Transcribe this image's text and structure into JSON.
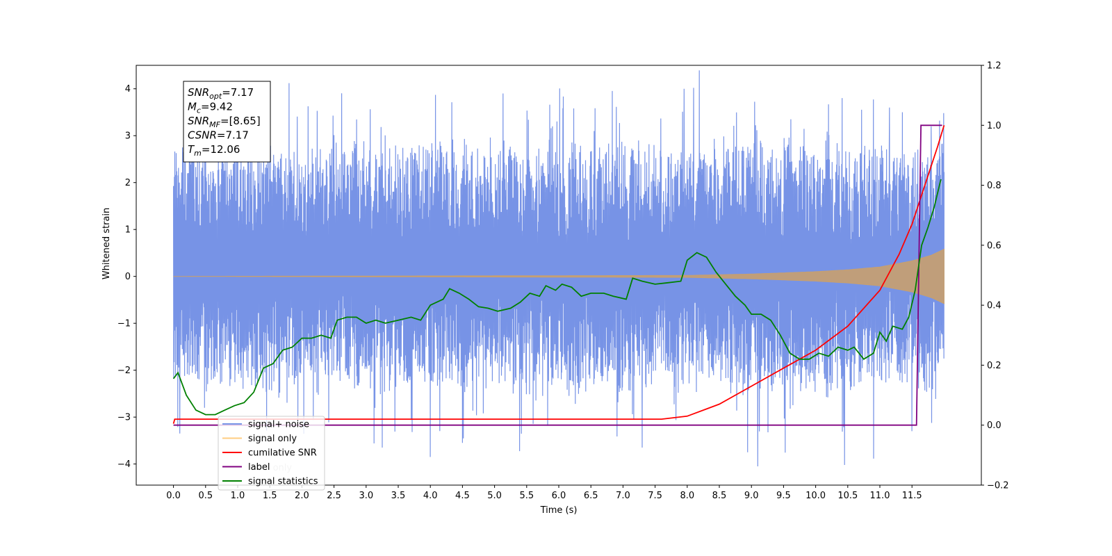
{
  "chart_data": {
    "type": "line",
    "xlabel": "Time (s)",
    "ylabel": "Whitened strain",
    "xlim": [
      -0.58,
      12.58
    ],
    "ylim": [
      -4.45,
      4.5
    ],
    "y2lim": [
      -0.2,
      1.2
    ],
    "grid": false,
    "legend_position": "lower-left",
    "x_ticks": [
      0.0,
      0.5,
      1.0,
      1.5,
      2.0,
      2.5,
      3.0,
      3.5,
      4.0,
      4.5,
      5.0,
      5.5,
      6.0,
      6.5,
      7.0,
      7.5,
      8.0,
      8.5,
      9.0,
      9.5,
      10.0,
      10.5,
      11.0,
      11.5
    ],
    "x_tick_labels": [
      "0.0",
      "0.5",
      "1.0",
      "1.5",
      "2.0",
      "2.5",
      "3.0",
      "3.5",
      "4.0",
      "4.5",
      "5.0",
      "5.5",
      "6.0",
      "6.5",
      "7.0",
      "7.5",
      "8.0",
      "8.5",
      "9.0",
      "9.5",
      "10.0",
      "10.5",
      "11.0",
      "11.5"
    ],
    "y_ticks": [
      4,
      3,
      2,
      1,
      0,
      -1,
      -2,
      -3,
      -4
    ],
    "y_tick_labels": [
      "4",
      "3",
      "2",
      "1",
      "0",
      "−1",
      "−2",
      "−3",
      "−4"
    ],
    "y2_ticks": [
      1.2,
      1.0,
      0.8,
      0.6,
      0.4,
      0.2,
      0.0,
      -0.2
    ],
    "y2_tick_labels": [
      "1.2",
      "1.0",
      "0.8",
      "0.6",
      "0.4",
      "0.2",
      "0.0",
      "−0.2"
    ],
    "annotation": [
      {
        "main": "SNR",
        "sub": "opt",
        "value": "=7.17"
      },
      {
        "main": "M",
        "sub": "c",
        "value": "=9.42"
      },
      {
        "main": "SNR",
        "sub": "MF",
        "value": "=[8.65]"
      },
      {
        "main": "CSNR",
        "sub": "",
        "value": "=7.17"
      },
      {
        "main": "T",
        "sub": "m",
        "value": "=12.06"
      }
    ],
    "legend": [
      {
        "label": "signal+ noise",
        "color": "#7793e6"
      },
      {
        "label": "signal only",
        "color": "#ffcc80"
      },
      {
        "label": "cumilative SNR",
        "color": "#ff0000"
      },
      {
        "label": "label",
        "color": "#800080"
      },
      {
        "label": "signal statistics",
        "color": "#008000"
      }
    ],
    "hidden_legend_text": "label only",
    "series": [
      {
        "name": "signal+ noise",
        "axis": "left",
        "color": "#7793e6",
        "x_range": [
          0.0,
          12.0
        ],
        "band_lower": -1.7,
        "band_upper": 2.1,
        "spikes": [
          {
            "x": 1.8,
            "y": 4.12
          },
          {
            "x": 4.08,
            "y": 3.87
          },
          {
            "x": 5.9,
            "y": 3.2
          },
          {
            "x": 6.55,
            "y": 3.1
          },
          {
            "x": 7.95,
            "y": 4.0
          },
          {
            "x": 8.1,
            "y": 4.02
          },
          {
            "x": 11.15,
            "y": 3.6
          },
          {
            "x": 11.35,
            "y": 3.5
          },
          {
            "x": 11.8,
            "y": 3.2
          },
          {
            "x": 0.1,
            "y": -3.35
          },
          {
            "x": 3.25,
            "y": -3.65
          },
          {
            "x": 4.0,
            "y": -3.85
          },
          {
            "x": 4.5,
            "y": -3.55
          },
          {
            "x": 7.3,
            "y": -3.65
          },
          {
            "x": 9.1,
            "y": -4.05
          },
          {
            "x": 10.45,
            "y": -4.02
          },
          {
            "x": 11.5,
            "y": -3.3
          }
        ]
      },
      {
        "name": "signal only",
        "axis": "left",
        "color": "#c8a06e",
        "envelope": [
          {
            "x": 0.0,
            "y": 0.0
          },
          {
            "x": 8.0,
            "y": 0.02
          },
          {
            "x": 9.0,
            "y": 0.05
          },
          {
            "x": 10.0,
            "y": 0.1
          },
          {
            "x": 10.5,
            "y": 0.14
          },
          {
            "x": 11.0,
            "y": 0.2
          },
          {
            "x": 11.5,
            "y": 0.33
          },
          {
            "x": 11.8,
            "y": 0.45
          },
          {
            "x": 12.0,
            "y": 0.58
          }
        ]
      },
      {
        "name": "cumilative SNR",
        "axis": "right",
        "color": "#ff0000",
        "points": [
          {
            "x": 0.0,
            "y": 0.005
          },
          {
            "x": 0.02,
            "y": 0.02
          },
          {
            "x": 7.6,
            "y": 0.02
          },
          {
            "x": 8.0,
            "y": 0.03
          },
          {
            "x": 8.5,
            "y": 0.07
          },
          {
            "x": 9.0,
            "y": 0.13
          },
          {
            "x": 9.5,
            "y": 0.19
          },
          {
            "x": 10.0,
            "y": 0.25
          },
          {
            "x": 10.5,
            "y": 0.33
          },
          {
            "x": 11.0,
            "y": 0.45
          },
          {
            "x": 11.3,
            "y": 0.57
          },
          {
            "x": 11.5,
            "y": 0.67
          },
          {
            "x": 11.7,
            "y": 0.8
          },
          {
            "x": 11.9,
            "y": 0.93
          },
          {
            "x": 12.0,
            "y": 1.0
          }
        ]
      },
      {
        "name": "label",
        "axis": "right",
        "color": "#800080",
        "points": [
          {
            "x": 0.0,
            "y": 0.0
          },
          {
            "x": 11.57,
            "y": 0.0
          },
          {
            "x": 11.64,
            "y": 1.0
          },
          {
            "x": 11.97,
            "y": 1.0
          }
        ]
      },
      {
        "name": "signal statistics",
        "axis": "right",
        "color": "#008000",
        "points": [
          {
            "x": 0.0,
            "y": 0.155
          },
          {
            "x": 0.07,
            "y": 0.175
          },
          {
            "x": 0.2,
            "y": 0.1
          },
          {
            "x": 0.35,
            "y": 0.05
          },
          {
            "x": 0.5,
            "y": 0.035
          },
          {
            "x": 0.65,
            "y": 0.035
          },
          {
            "x": 0.8,
            "y": 0.05
          },
          {
            "x": 0.95,
            "y": 0.065
          },
          {
            "x": 1.1,
            "y": 0.075
          },
          {
            "x": 1.25,
            "y": 0.11
          },
          {
            "x": 1.4,
            "y": 0.19
          },
          {
            "x": 1.55,
            "y": 0.205
          },
          {
            "x": 1.7,
            "y": 0.25
          },
          {
            "x": 1.85,
            "y": 0.26
          },
          {
            "x": 2.0,
            "y": 0.29
          },
          {
            "x": 2.15,
            "y": 0.29
          },
          {
            "x": 2.3,
            "y": 0.3
          },
          {
            "x": 2.45,
            "y": 0.29
          },
          {
            "x": 2.55,
            "y": 0.35
          },
          {
            "x": 2.7,
            "y": 0.36
          },
          {
            "x": 2.85,
            "y": 0.36
          },
          {
            "x": 3.0,
            "y": 0.34
          },
          {
            "x": 3.15,
            "y": 0.35
          },
          {
            "x": 3.3,
            "y": 0.34
          },
          {
            "x": 3.5,
            "y": 0.35
          },
          {
            "x": 3.7,
            "y": 0.36
          },
          {
            "x": 3.85,
            "y": 0.35
          },
          {
            "x": 4.0,
            "y": 0.4
          },
          {
            "x": 4.2,
            "y": 0.42
          },
          {
            "x": 4.3,
            "y": 0.455
          },
          {
            "x": 4.45,
            "y": 0.44
          },
          {
            "x": 4.6,
            "y": 0.42
          },
          {
            "x": 4.75,
            "y": 0.395
          },
          {
            "x": 4.9,
            "y": 0.39
          },
          {
            "x": 5.05,
            "y": 0.38
          },
          {
            "x": 5.25,
            "y": 0.39
          },
          {
            "x": 5.4,
            "y": 0.41
          },
          {
            "x": 5.55,
            "y": 0.44
          },
          {
            "x": 5.7,
            "y": 0.43
          },
          {
            "x": 5.8,
            "y": 0.465
          },
          {
            "x": 5.95,
            "y": 0.45
          },
          {
            "x": 6.05,
            "y": 0.47
          },
          {
            "x": 6.2,
            "y": 0.46
          },
          {
            "x": 6.35,
            "y": 0.43
          },
          {
            "x": 6.5,
            "y": 0.44
          },
          {
            "x": 6.7,
            "y": 0.44
          },
          {
            "x": 6.85,
            "y": 0.43
          },
          {
            "x": 7.05,
            "y": 0.42
          },
          {
            "x": 7.15,
            "y": 0.49
          },
          {
            "x": 7.3,
            "y": 0.48
          },
          {
            "x": 7.5,
            "y": 0.47
          },
          {
            "x": 7.7,
            "y": 0.475
          },
          {
            "x": 7.9,
            "y": 0.48
          },
          {
            "x": 8.0,
            "y": 0.55
          },
          {
            "x": 8.15,
            "y": 0.575
          },
          {
            "x": 8.3,
            "y": 0.56
          },
          {
            "x": 8.45,
            "y": 0.51
          },
          {
            "x": 8.6,
            "y": 0.47
          },
          {
            "x": 8.75,
            "y": 0.43
          },
          {
            "x": 8.9,
            "y": 0.4
          },
          {
            "x": 9.0,
            "y": 0.37
          },
          {
            "x": 9.15,
            "y": 0.37
          },
          {
            "x": 9.3,
            "y": 0.35
          },
          {
            "x": 9.45,
            "y": 0.3
          },
          {
            "x": 9.6,
            "y": 0.24
          },
          {
            "x": 9.75,
            "y": 0.22
          },
          {
            "x": 9.9,
            "y": 0.22
          },
          {
            "x": 10.05,
            "y": 0.24
          },
          {
            "x": 10.2,
            "y": 0.23
          },
          {
            "x": 10.35,
            "y": 0.26
          },
          {
            "x": 10.5,
            "y": 0.25
          },
          {
            "x": 10.6,
            "y": 0.26
          },
          {
            "x": 10.75,
            "y": 0.22
          },
          {
            "x": 10.9,
            "y": 0.24
          },
          {
            "x": 11.0,
            "y": 0.31
          },
          {
            "x": 11.1,
            "y": 0.28
          },
          {
            "x": 11.2,
            "y": 0.33
          },
          {
            "x": 11.35,
            "y": 0.32
          },
          {
            "x": 11.45,
            "y": 0.36
          },
          {
            "x": 11.55,
            "y": 0.45
          },
          {
            "x": 11.65,
            "y": 0.6
          },
          {
            "x": 11.75,
            "y": 0.66
          },
          {
            "x": 11.85,
            "y": 0.73
          },
          {
            "x": 11.95,
            "y": 0.82
          }
        ]
      }
    ]
  }
}
